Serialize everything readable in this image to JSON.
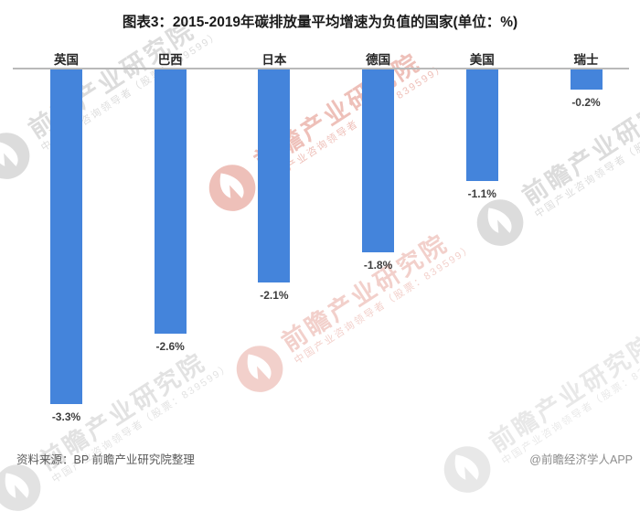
{
  "title": "图表3：2015-2019年碳排放量平均增速为负值的国家(单位：%)",
  "chart_data": {
    "type": "bar",
    "orientation": "vertical_negative",
    "categories": [
      "英国",
      "巴西",
      "日本",
      "德国",
      "美国",
      "瑞士"
    ],
    "values": [
      -3.3,
      -2.6,
      -2.1,
      -1.8,
      -1.1,
      -0.2
    ],
    "value_labels": [
      "-3.3%",
      "-2.6%",
      "-2.1%",
      "-1.8%",
      "-1.1%",
      "-0.2%"
    ],
    "title": "图表3：2015-2019年碳排放量平均增速为负值的国家(单位：%)",
    "xlabel": "",
    "ylabel": "",
    "unit": "%",
    "ylim": [
      -3.5,
      0
    ],
    "grid": false,
    "legend": false,
    "bar_color": "#4484DB",
    "axis_line_color": "#b9b9b9"
  },
  "footer": {
    "source": "资料来源：BP 前瞻产业研究院整理",
    "brand": "@前瞻经济学人APP"
  },
  "watermark": {
    "main_text": "前瞻产业研究院",
    "sub_text": "中国产业咨询领导者（股票：839599）",
    "gray_color": "#d7d7d7",
    "pink_color": "#e9aba2"
  }
}
